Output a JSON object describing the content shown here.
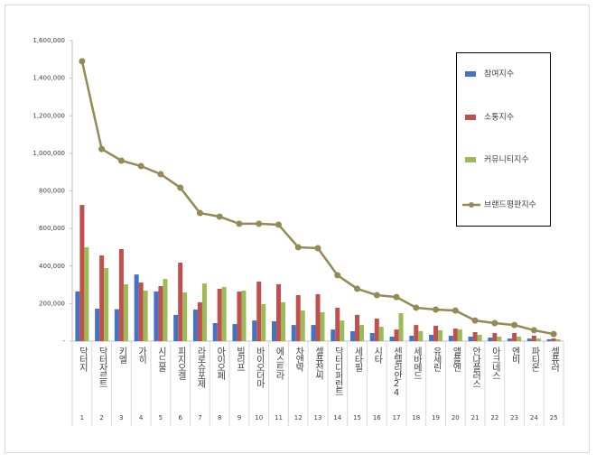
{
  "chart_data": {
    "type": "bar_line",
    "categories": [
      "닥터지",
      "닥터자르트",
      "키엘",
      "가히",
      "시드물",
      "피지오겔",
      "라로슈포제",
      "아이오페",
      "빌리프",
      "바이오더마",
      "에스트라",
      "차앤박",
      "셀퓨전씨",
      "닥터디퍼런트",
      "세타필",
      "시타",
      "센텔리안24",
      "세바메드",
      "유세린",
      "앨플엔",
      "안나플러스",
      "아크네스",
      "엔비",
      "파티온",
      "셀퓨러"
    ],
    "category_numbers": [
      1,
      2,
      3,
      4,
      5,
      6,
      7,
      8,
      9,
      10,
      11,
      12,
      13,
      14,
      15,
      16,
      17,
      18,
      19,
      20,
      21,
      22,
      23,
      24,
      25
    ],
    "series": [
      {
        "name": "참여지수",
        "type": "bar",
        "color": "#4472c4",
        "values": [
          265000,
          173000,
          170000,
          355000,
          265000,
          140000,
          168000,
          96000,
          91000,
          110000,
          106000,
          86000,
          86000,
          62000,
          53000,
          43000,
          24000,
          29000,
          34000,
          29000,
          24000,
          19000,
          14000,
          14000,
          10000
        ]
      },
      {
        "name": "소통지수",
        "type": "bar",
        "color": "#c0504d",
        "values": [
          725000,
          456000,
          490000,
          312000,
          293000,
          418000,
          207000,
          279000,
          264000,
          317000,
          303000,
          245000,
          250000,
          178000,
          140000,
          120000,
          62000,
          86000,
          82000,
          67000,
          48000,
          43000,
          43000,
          29000,
          14000
        ]
      },
      {
        "name": "커뮤니티지수",
        "type": "bar",
        "color": "#9bbb59",
        "values": [
          500000,
          389000,
          303000,
          269000,
          331000,
          259000,
          307000,
          288000,
          269000,
          197000,
          207000,
          163000,
          154000,
          110000,
          86000,
          77000,
          149000,
          53000,
          58000,
          62000,
          34000,
          24000,
          24000,
          14000,
          10000
        ]
      },
      {
        "name": "브랜드평판지수",
        "type": "line",
        "color": "#948a54",
        "values": [
          1490000,
          1023000,
          961000,
          932000,
          889000,
          817000,
          682000,
          663000,
          625000,
          625000,
          620000,
          500000,
          495000,
          351000,
          279000,
          245000,
          235000,
          178000,
          168000,
          163000,
          110000,
          96000,
          86000,
          58000,
          38000
        ]
      }
    ],
    "ylim": [
      0,
      1600000
    ],
    "yticks": [
      {
        "value": 0,
        "label": "-"
      },
      {
        "value": 200000,
        "label": "200,000"
      },
      {
        "value": 400000,
        "label": "400,000"
      },
      {
        "value": 600000,
        "label": "600,000"
      },
      {
        "value": 800000,
        "label": "800,000"
      },
      {
        "value": 1000000,
        "label": "1,000,000"
      },
      {
        "value": 1200000,
        "label": "1,200,000"
      },
      {
        "value": 1400000,
        "label": "1,400,000"
      },
      {
        "value": 1600000,
        "label": "1,600,000"
      }
    ],
    "grid": false,
    "legend": "right"
  }
}
